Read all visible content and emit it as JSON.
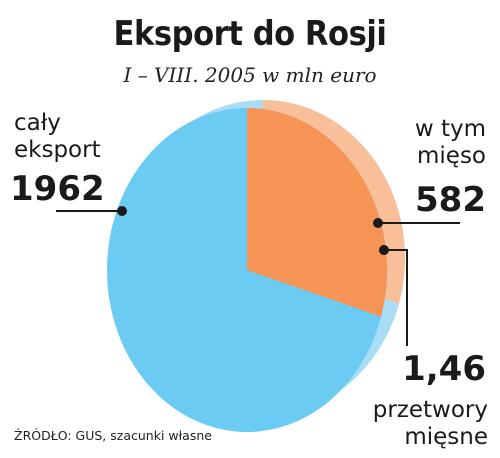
{
  "chart_data": {
    "type": "pie",
    "title": "Eksport do Rosji",
    "subtitle": "I – VIII. 2005  w mln euro",
    "slices": [
      {
        "name": "cały eksport",
        "value": 1962,
        "color": "#6ccbf2"
      },
      {
        "name": "w tym mięso",
        "value": 582,
        "color": "#f59454"
      }
    ],
    "annotations": [
      {
        "label": "przetwory mięsne",
        "value": "1,46"
      }
    ]
  },
  "labels": {
    "total_line1": "cały",
    "total_line2": "eksport",
    "total_value": "1962",
    "meat_line1": "w tym",
    "meat_line2": "mięso",
    "meat_value": "582",
    "processed_value": "1,46",
    "processed_line1": "przetwory",
    "processed_line2": "mięsne"
  },
  "source": "ŹRÓDŁO: GUS, szacunki własne",
  "colors": {
    "total": "#6ccbf2",
    "total_rim": "#a9ddf5",
    "meat": "#f59454",
    "meat_rim": "#f8bf98",
    "leader": "#1a1a1a"
  }
}
